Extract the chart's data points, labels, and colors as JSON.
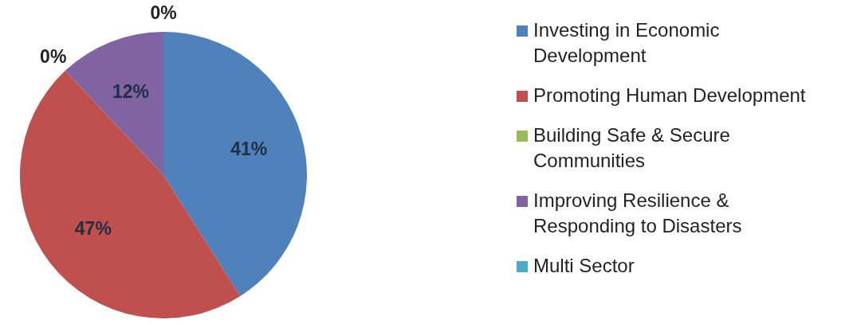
{
  "chart_data": {
    "type": "pie",
    "categories": [
      "Investing in Economic Development",
      "Promoting Human Development",
      "Building Safe & Secure Communities",
      "Improving Resilience & Responding to Disasters",
      "Multi Sector"
    ],
    "values": [
      41,
      47,
      0,
      12,
      0
    ],
    "colors": [
      "#4f81bd",
      "#c0504d",
      "#9bbb59",
      "#8064a2",
      "#4bacc6"
    ],
    "value_labels": [
      "41%",
      "47%",
      "0%",
      "12%",
      "0%"
    ],
    "legend": "right"
  }
}
